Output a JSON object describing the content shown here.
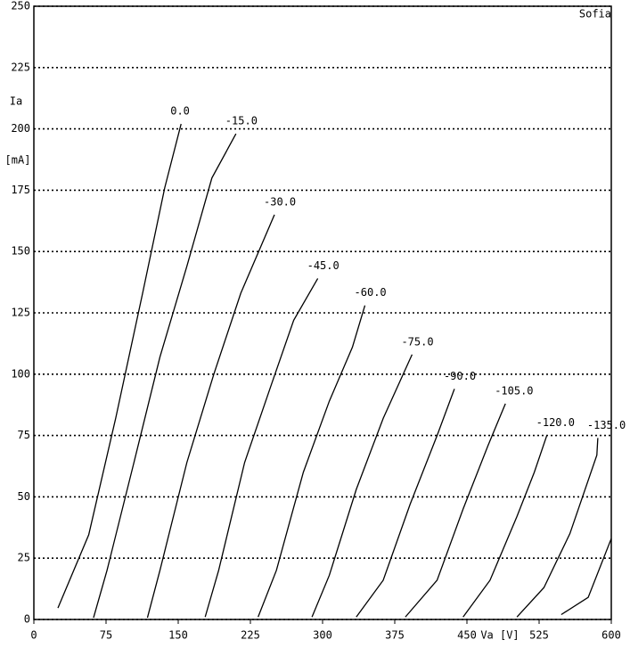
{
  "chart_data": {
    "type": "line",
    "annotation": "Sofia",
    "x_label": "Va [V]",
    "y_label": "Ia",
    "y_unit": "[mA]",
    "xlim": [
      0,
      600
    ],
    "xticks": [
      0,
      75,
      150,
      225,
      300,
      375,
      450,
      525,
      600
    ],
    "ylim": [
      0,
      250
    ],
    "yticks": [
      0,
      25,
      50,
      75,
      100,
      125,
      150,
      175,
      200,
      225,
      250
    ],
    "grid": true,
    "color": "#000000",
    "series": [
      {
        "name": "0.0",
        "x": [
          25,
          57,
          85,
          113,
          136,
          153
        ],
        "values": [
          4.7,
          34.5,
          82,
          133,
          176,
          202
        ]
      },
      {
        "name": "-15.0",
        "x": [
          62,
          76,
          104,
          131,
          159,
          185,
          210
        ],
        "values": [
          0.7,
          20,
          64,
          107,
          144,
          180,
          198
        ]
      },
      {
        "name": "-30.0",
        "x": [
          118,
          131,
          159,
          187,
          215,
          250
        ],
        "values": [
          0.7,
          20,
          64,
          100,
          133,
          165
        ]
      },
      {
        "name": "-45.0",
        "x": [
          178,
          192,
          219,
          247,
          270,
          295
        ],
        "values": [
          1,
          20,
          64,
          96,
          122,
          139
        ]
      },
      {
        "name": "-60.0",
        "x": [
          233,
          252,
          280,
          307,
          331,
          344
        ],
        "values": [
          1,
          20,
          60,
          89,
          111,
          128
        ]
      },
      {
        "name": "-75.0",
        "x": [
          289,
          307,
          335,
          363,
          393
        ],
        "values": [
          1,
          18,
          53,
          82,
          108
        ]
      },
      {
        "name": "-90.0",
        "x": [
          335,
          363,
          391,
          419,
          437
        ],
        "values": [
          1,
          16,
          47,
          75,
          94
        ]
      },
      {
        "name": "-105.0",
        "x": [
          386,
          419,
          446,
          472,
          490
        ],
        "values": [
          1,
          16,
          45,
          71,
          88
        ]
      },
      {
        "name": "-120.0",
        "x": [
          446,
          474,
          502,
          520,
          533
        ],
        "values": [
          1,
          16,
          42,
          60,
          75
        ]
      },
      {
        "name": "-135.0",
        "x": [
          502,
          530,
          557,
          585,
          586
        ],
        "values": [
          1,
          13,
          35,
          67,
          74
        ]
      },
      {
        "x": [
          548,
          576,
          600
        ],
        "values": [
          2,
          9,
          33
        ]
      }
    ]
  }
}
